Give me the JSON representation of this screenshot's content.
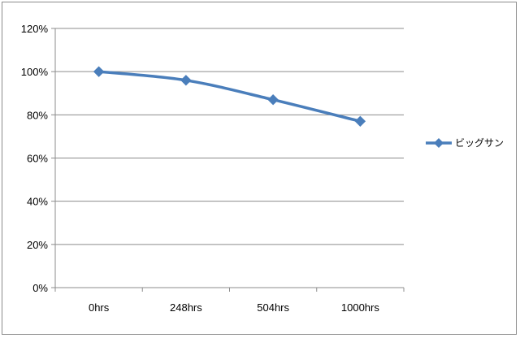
{
  "chart_data": {
    "type": "line",
    "categories": [
      "0hrs",
      "248hrs",
      "504hrs",
      "1000hrs"
    ],
    "series": [
      {
        "name": "ビッグサン",
        "values": [
          100,
          96,
          87,
          77
        ],
        "color": "#4a7ebb",
        "marker": "diamond"
      }
    ],
    "ylim": [
      0,
      120
    ],
    "yticks": [
      "0%",
      "20%",
      "40%",
      "60%",
      "80%",
      "100%",
      "120%"
    ],
    "grid": true,
    "legend": "right"
  }
}
